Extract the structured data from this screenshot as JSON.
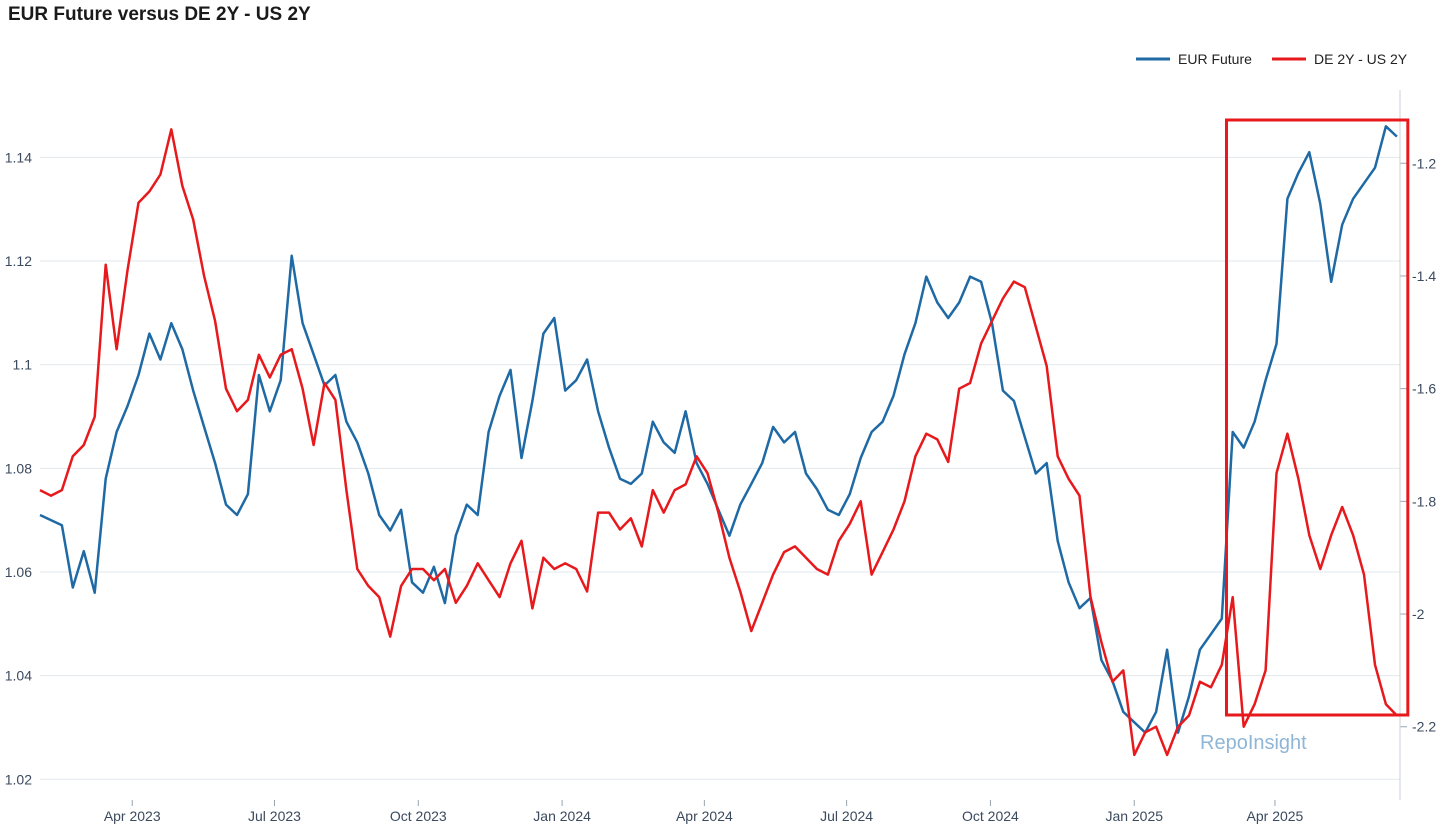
{
  "chart_data": {
    "type": "line",
    "title": "EUR Future versus DE 2Y - US 2Y",
    "xlabel": "",
    "ylabel": "",
    "x_ticks": [
      "Apr 2023",
      "Jul 2023",
      "Oct 2023",
      "Jan 2024",
      "Apr 2024",
      "Jul 2024",
      "Oct 2024",
      "Jan 2025",
      "Apr 2025"
    ],
    "x_range": [
      "2023-02-01",
      "2025-06-20"
    ],
    "y_left": {
      "ticks": [
        "1.02",
        "1.04",
        "1.06",
        "1.08",
        "1.1",
        "1.12",
        "1.14"
      ],
      "range": [
        1.016,
        1.153
      ]
    },
    "y_right": {
      "ticks": [
        "-1.2",
        "-1.4",
        "-1.6",
        "-1.8",
        "-2",
        "-2.2"
      ],
      "range": [
        -2.33,
        -1.07
      ]
    },
    "legend": [
      "EUR Future",
      "DE 2Y - US 2Y"
    ],
    "legend_position": "top-right",
    "watermark": "RepoInsight",
    "highlight_box": {
      "from": "2025-03-01",
      "to": "2025-06-25",
      "color": "#e8191c"
    },
    "colors": {
      "eur": "#1f6aa5",
      "spread": "#e8191c",
      "grid": "#e3e8ee"
    },
    "series": [
      {
        "name": "EUR Future",
        "axis": "left",
        "x": [
          "2023-02-01",
          "2023-02-08",
          "2023-02-15",
          "2023-02-22",
          "2023-03-01",
          "2023-03-08",
          "2023-03-15",
          "2023-03-22",
          "2023-03-29",
          "2023-04-05",
          "2023-04-12",
          "2023-04-19",
          "2023-04-26",
          "2023-05-03",
          "2023-05-10",
          "2023-05-17",
          "2023-05-24",
          "2023-05-31",
          "2023-06-07",
          "2023-06-14",
          "2023-06-21",
          "2023-06-28",
          "2023-07-05",
          "2023-07-12",
          "2023-07-19",
          "2023-07-26",
          "2023-08-02",
          "2023-08-09",
          "2023-08-16",
          "2023-08-23",
          "2023-08-30",
          "2023-09-06",
          "2023-09-13",
          "2023-09-20",
          "2023-09-27",
          "2023-10-04",
          "2023-10-11",
          "2023-10-18",
          "2023-10-25",
          "2023-11-01",
          "2023-11-08",
          "2023-11-15",
          "2023-11-22",
          "2023-11-29",
          "2023-12-06",
          "2023-12-13",
          "2023-12-20",
          "2023-12-27",
          "2024-01-03",
          "2024-01-10",
          "2024-01-17",
          "2024-01-24",
          "2024-01-31",
          "2024-02-07",
          "2024-02-14",
          "2024-02-21",
          "2024-02-28",
          "2024-03-06",
          "2024-03-13",
          "2024-03-20",
          "2024-03-27",
          "2024-04-03",
          "2024-04-10",
          "2024-04-17",
          "2024-04-24",
          "2024-05-01",
          "2024-05-08",
          "2024-05-15",
          "2024-05-22",
          "2024-05-29",
          "2024-06-05",
          "2024-06-12",
          "2024-06-19",
          "2024-06-26",
          "2024-07-03",
          "2024-07-10",
          "2024-07-17",
          "2024-07-24",
          "2024-07-31",
          "2024-08-07",
          "2024-08-14",
          "2024-08-21",
          "2024-08-28",
          "2024-09-04",
          "2024-09-11",
          "2024-09-18",
          "2024-09-25",
          "2024-10-02",
          "2024-10-09",
          "2024-10-16",
          "2024-10-23",
          "2024-10-30",
          "2024-11-06",
          "2024-11-13",
          "2024-11-20",
          "2024-11-27",
          "2024-12-04",
          "2024-12-11",
          "2024-12-18",
          "2024-12-25",
          "2025-01-01",
          "2025-01-08",
          "2025-01-15",
          "2025-01-22",
          "2025-01-29",
          "2025-02-05",
          "2025-02-12",
          "2025-02-19",
          "2025-02-26",
          "2025-03-05",
          "2025-03-12",
          "2025-03-19",
          "2025-03-26",
          "2025-04-02",
          "2025-04-09",
          "2025-04-16",
          "2025-04-23",
          "2025-04-30",
          "2025-05-07",
          "2025-05-14",
          "2025-05-21",
          "2025-05-28",
          "2025-06-04",
          "2025-06-11",
          "2025-06-18"
        ],
        "values": [
          1.071,
          1.07,
          1.069,
          1.057,
          1.064,
          1.056,
          1.078,
          1.087,
          1.092,
          1.098,
          1.106,
          1.101,
          1.108,
          1.103,
          1.095,
          1.088,
          1.081,
          1.073,
          1.071,
          1.075,
          1.098,
          1.091,
          1.097,
          1.121,
          1.108,
          1.102,
          1.096,
          1.098,
          1.089,
          1.085,
          1.079,
          1.071,
          1.068,
          1.072,
          1.058,
          1.056,
          1.061,
          1.054,
          1.067,
          1.073,
          1.071,
          1.087,
          1.094,
          1.099,
          1.082,
          1.093,
          1.106,
          1.109,
          1.095,
          1.097,
          1.101,
          1.091,
          1.084,
          1.078,
          1.077,
          1.079,
          1.089,
          1.085,
          1.083,
          1.091,
          1.081,
          1.077,
          1.072,
          1.067,
          1.073,
          1.077,
          1.081,
          1.088,
          1.085,
          1.087,
          1.079,
          1.076,
          1.072,
          1.071,
          1.075,
          1.082,
          1.087,
          1.089,
          1.094,
          1.102,
          1.108,
          1.117,
          1.112,
          1.109,
          1.112,
          1.117,
          1.116,
          1.108,
          1.095,
          1.093,
          1.086,
          1.079,
          1.081,
          1.066,
          1.058,
          1.053,
          1.055,
          1.043,
          1.039,
          1.033,
          1.031,
          1.029,
          1.033,
          1.045,
          1.029,
          1.036,
          1.045,
          1.048,
          1.051,
          1.087,
          1.084,
          1.089,
          1.097,
          1.104,
          1.132,
          1.137,
          1.141,
          1.131,
          1.116,
          1.127,
          1.132,
          1.135,
          1.138,
          1.146,
          1.144
        ]
      },
      {
        "name": "DE 2Y - US 2Y",
        "axis": "right",
        "x": [
          "2023-02-01",
          "2023-02-08",
          "2023-02-15",
          "2023-02-22",
          "2023-03-01",
          "2023-03-08",
          "2023-03-15",
          "2023-03-22",
          "2023-03-29",
          "2023-04-05",
          "2023-04-12",
          "2023-04-19",
          "2023-04-26",
          "2023-05-03",
          "2023-05-10",
          "2023-05-17",
          "2023-05-24",
          "2023-05-31",
          "2023-06-07",
          "2023-06-14",
          "2023-06-21",
          "2023-06-28",
          "2023-07-05",
          "2023-07-12",
          "2023-07-19",
          "2023-07-26",
          "2023-08-02",
          "2023-08-09",
          "2023-08-16",
          "2023-08-23",
          "2023-08-30",
          "2023-09-06",
          "2023-09-13",
          "2023-09-20",
          "2023-09-27",
          "2023-10-04",
          "2023-10-11",
          "2023-10-18",
          "2023-10-25",
          "2023-11-01",
          "2023-11-08",
          "2023-11-15",
          "2023-11-22",
          "2023-11-29",
          "2023-12-06",
          "2023-12-13",
          "2023-12-20",
          "2023-12-27",
          "2024-01-03",
          "2024-01-10",
          "2024-01-17",
          "2024-01-24",
          "2024-01-31",
          "2024-02-07",
          "2024-02-14",
          "2024-02-21",
          "2024-02-28",
          "2024-03-06",
          "2024-03-13",
          "2024-03-20",
          "2024-03-27",
          "2024-04-03",
          "2024-04-10",
          "2024-04-17",
          "2024-04-24",
          "2024-05-01",
          "2024-05-08",
          "2024-05-15",
          "2024-05-22",
          "2024-05-29",
          "2024-06-05",
          "2024-06-12",
          "2024-06-19",
          "2024-06-26",
          "2024-07-03",
          "2024-07-10",
          "2024-07-17",
          "2024-07-24",
          "2024-07-31",
          "2024-08-07",
          "2024-08-14",
          "2024-08-21",
          "2024-08-28",
          "2024-09-04",
          "2024-09-11",
          "2024-09-18",
          "2024-09-25",
          "2024-10-02",
          "2024-10-09",
          "2024-10-16",
          "2024-10-23",
          "2024-10-30",
          "2024-11-06",
          "2024-11-13",
          "2024-11-20",
          "2024-11-27",
          "2024-12-04",
          "2024-12-11",
          "2024-12-18",
          "2024-12-25",
          "2025-01-01",
          "2025-01-08",
          "2025-01-15",
          "2025-01-22",
          "2025-01-29",
          "2025-02-05",
          "2025-02-12",
          "2025-02-19",
          "2025-02-26",
          "2025-03-05",
          "2025-03-12",
          "2025-03-19",
          "2025-03-26",
          "2025-04-02",
          "2025-04-09",
          "2025-04-16",
          "2025-04-23",
          "2025-04-30",
          "2025-05-07",
          "2025-05-14",
          "2025-05-21",
          "2025-05-28",
          "2025-06-04",
          "2025-06-11",
          "2025-06-18"
        ],
        "values": [
          -1.78,
          -1.79,
          -1.78,
          -1.72,
          -1.7,
          -1.65,
          -1.38,
          -1.53,
          -1.39,
          -1.27,
          -1.25,
          -1.22,
          -1.14,
          -1.24,
          -1.3,
          -1.4,
          -1.48,
          -1.6,
          -1.64,
          -1.62,
          -1.54,
          -1.58,
          -1.54,
          -1.53,
          -1.6,
          -1.7,
          -1.59,
          -1.62,
          -1.78,
          -1.92,
          -1.95,
          -1.97,
          -2.04,
          -1.95,
          -1.92,
          -1.92,
          -1.94,
          -1.92,
          -1.98,
          -1.95,
          -1.91,
          -1.94,
          -1.97,
          -1.91,
          -1.87,
          -1.99,
          -1.9,
          -1.92,
          -1.91,
          -1.92,
          -1.96,
          -1.82,
          -1.82,
          -1.85,
          -1.83,
          -1.88,
          -1.78,
          -1.82,
          -1.78,
          -1.77,
          -1.72,
          -1.75,
          -1.82,
          -1.9,
          -1.96,
          -2.03,
          -1.98,
          -1.93,
          -1.89,
          -1.88,
          -1.9,
          -1.92,
          -1.93,
          -1.87,
          -1.84,
          -1.8,
          -1.93,
          -1.89,
          -1.85,
          -1.8,
          -1.72,
          -1.68,
          -1.69,
          -1.73,
          -1.6,
          -1.59,
          -1.52,
          -1.48,
          -1.44,
          -1.41,
          -1.42,
          -1.49,
          -1.56,
          -1.72,
          -1.76,
          -1.79,
          -1.97,
          -2.05,
          -2.12,
          -2.1,
          -2.25,
          -2.21,
          -2.2,
          -2.25,
          -2.2,
          -2.18,
          -2.12,
          -2.13,
          -2.09,
          -1.97,
          -2.2,
          -2.16,
          -2.1,
          -1.75,
          -1.68,
          -1.76,
          -1.86,
          -1.92,
          -1.86,
          -1.81,
          -1.86,
          -1.93,
          -2.09,
          -2.16,
          -2.18
        ]
      }
    ]
  }
}
